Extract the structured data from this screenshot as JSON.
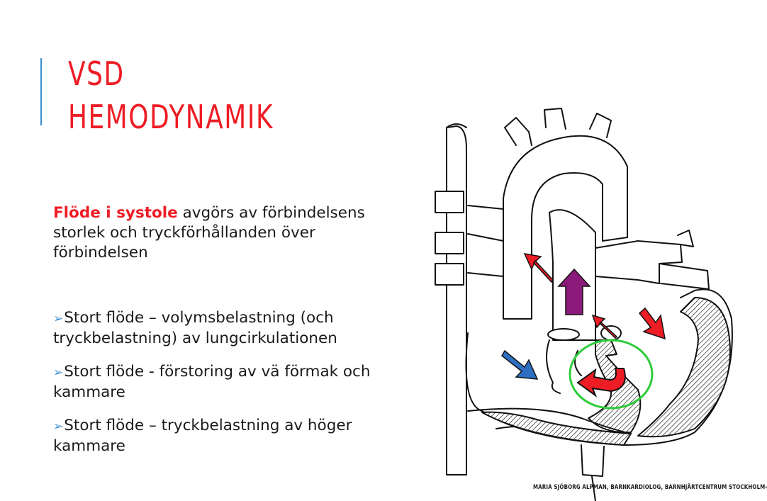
{
  "slide": {
    "title_line1": "VSD",
    "title_line2": "HEMODYNAMIK",
    "intro": {
      "highlight": "Flöde i systole",
      "rest": " avgörs av förbindelsens storlek och tryckförhållanden över förbindelsen"
    },
    "bullets": [
      "Stort flöde – volymsbelastning (och tryckbelastning) av lungcirkulationen",
      "Stort flöde - förstoring av vä förmak och kammare",
      "Stort flöde – tryckbelastning av höger kammare"
    ],
    "credit": "MARIA SJÖBORG ALPMAN, BARNKARDIOLOG, BARNHJÄRTCENTRUM STOCKHOLM-UPPSALA"
  },
  "colors": {
    "title": "#ee1c25",
    "accent": "#3a8fd0",
    "arrow_red": "#ee1c25",
    "arrow_purple": "#8b1a7a",
    "arrow_blue": "#2e6fc4",
    "circle_green": "#2ecc3a"
  },
  "icons": [
    "bullet-arrow-icon"
  ]
}
